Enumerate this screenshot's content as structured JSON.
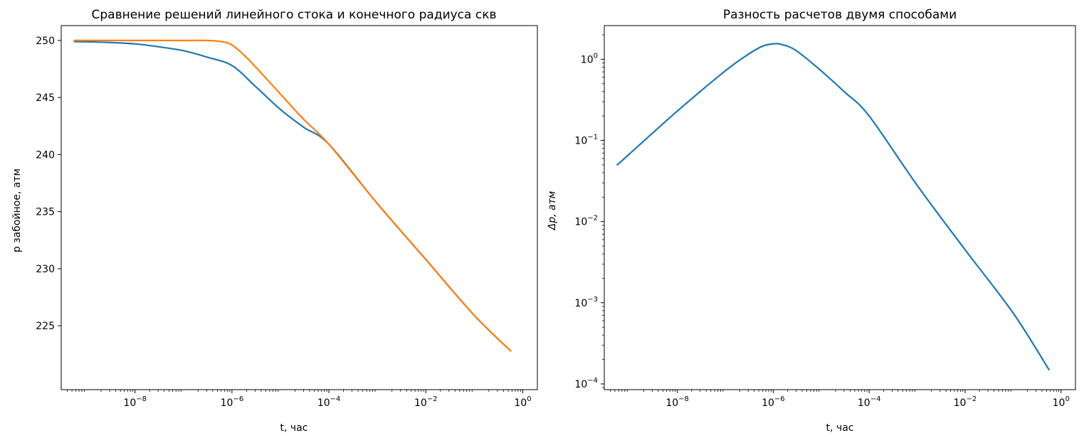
{
  "chart_data": [
    {
      "type": "line",
      "title": "Сравнение решений линейного стока и конечного радиуса скв",
      "xlabel": "t, час",
      "ylabel": "p забойное, атм",
      "xscale": "log",
      "yscale": "linear",
      "xlim": [
        3e-10,
        2.0
      ],
      "ylim": [
        219.4,
        251.3
      ],
      "grid": false,
      "x_ticks": [
        {
          "value": 1e-08,
          "base": "10",
          "exp": "−8"
        },
        {
          "value": 1e-06,
          "base": "10",
          "exp": "−6"
        },
        {
          "value": 0.0001,
          "base": "10",
          "exp": "−4"
        },
        {
          "value": 0.01,
          "base": "10",
          "exp": "−2"
        },
        {
          "value": 1,
          "base": "10",
          "exp": "0"
        }
      ],
      "y_ticks": [
        {
          "value": 250,
          "label": "250"
        },
        {
          "value": 245,
          "label": "245"
        },
        {
          "value": 240,
          "label": "240"
        },
        {
          "value": 235,
          "label": "235"
        },
        {
          "value": 230,
          "label": "230"
        },
        {
          "value": 225,
          "label": "225"
        }
      ],
      "series": [
        {
          "color": "#1f77b4",
          "x": [
            5.6e-10,
            1e-09,
            3e-09,
            1e-08,
            3e-08,
            1e-07,
            3e-07,
            1e-06,
            3e-06,
            1e-05,
            3e-05,
            0.0001,
            0.001,
            0.01,
            0.1,
            0.56
          ],
          "y": [
            249.9,
            249.88,
            249.82,
            249.7,
            249.45,
            249.1,
            248.55,
            247.8,
            246.0,
            243.95,
            242.4,
            240.9,
            235.7,
            230.8,
            225.9,
            222.8
          ]
        },
        {
          "color": "#ff7f0e",
          "x": [
            5.6e-10,
            1e-09,
            1e-08,
            1e-07,
            3e-07,
            6e-07,
            1e-06,
            2e-06,
            5e-06,
            1e-05,
            3e-05,
            0.0001,
            0.001,
            0.01,
            0.1,
            0.56
          ],
          "y": [
            250.0,
            250.0,
            250.0,
            250.0,
            250.0,
            249.9,
            249.6,
            248.5,
            246.7,
            245.3,
            243.1,
            240.9,
            235.7,
            230.8,
            225.9,
            222.8
          ]
        }
      ]
    },
    {
      "type": "line",
      "title": "Разность расчетов двумя способами",
      "xlabel": "t, час",
      "ylabel": "Δp, атм",
      "xscale": "log",
      "yscale": "log",
      "xlim": [
        3e-10,
        2.0
      ],
      "ylim": [
        8.5e-05,
        2.6
      ],
      "grid": false,
      "x_ticks": [
        {
          "value": 1e-08,
          "base": "10",
          "exp": "−8"
        },
        {
          "value": 1e-06,
          "base": "10",
          "exp": "−6"
        },
        {
          "value": 0.0001,
          "base": "10",
          "exp": "−4"
        },
        {
          "value": 0.01,
          "base": "10",
          "exp": "−2"
        },
        {
          "value": 1,
          "base": "10",
          "exp": "0"
        }
      ],
      "y_ticks": [
        {
          "value": 1,
          "base": "10",
          "exp": "0"
        },
        {
          "value": 0.1,
          "base": "10",
          "exp": "−1"
        },
        {
          "value": 0.01,
          "base": "10",
          "exp": "−2"
        },
        {
          "value": 0.001,
          "base": "10",
          "exp": "−3"
        },
        {
          "value": 0.0001,
          "base": "10",
          "exp": "−4"
        }
      ],
      "series": [
        {
          "color": "#1f77b4",
          "x": [
            5.6e-10,
            1e-09,
            1e-08,
            1e-07,
            3e-07,
            6e-07,
            1e-06,
            1.5e-06,
            3e-06,
            1e-05,
            3e-05,
            0.0001,
            0.001,
            0.01,
            0.1,
            0.56
          ],
          "y": [
            0.05,
            0.068,
            0.23,
            0.72,
            1.15,
            1.45,
            1.55,
            1.52,
            1.28,
            0.72,
            0.4,
            0.2,
            0.028,
            0.0045,
            0.00075,
            0.00015
          ]
        }
      ]
    }
  ]
}
